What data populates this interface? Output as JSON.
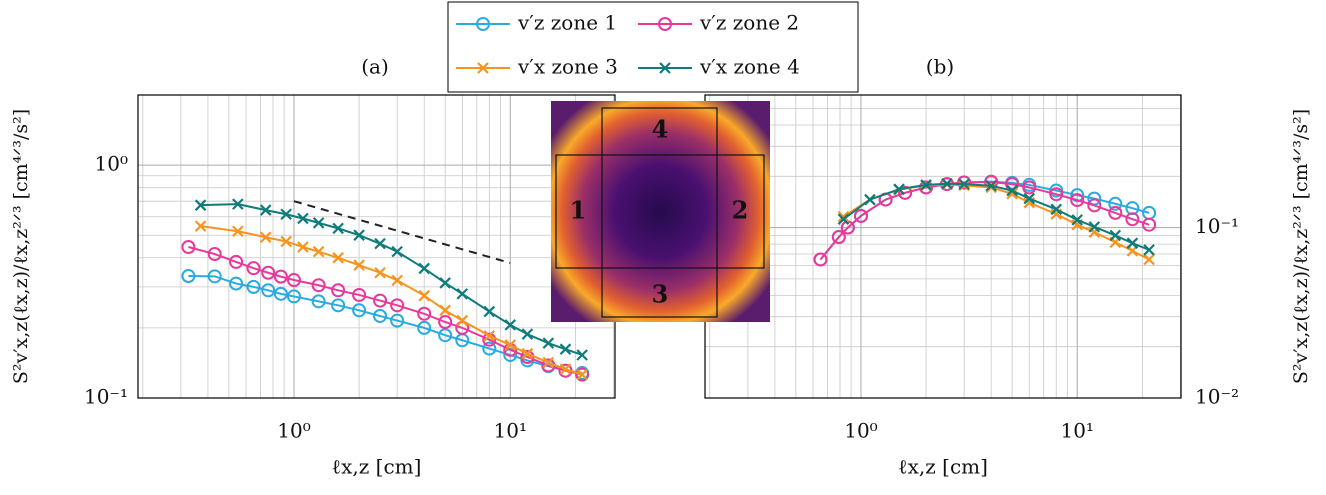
{
  "chart_data": [
    {
      "type": "line",
      "panel_label": "(a)",
      "xlabel": "ℓx,z [cm]",
      "ylabel": "S²v′x,z(ℓx,z)/ℓx,z²ᐟ³ [cm⁴ᐟ³/s²]",
      "log_x": true,
      "log_y": true,
      "grid": true,
      "xlim": [
        0.19,
        30.5
      ],
      "ylim": [
        0.1,
        2.0
      ],
      "xticks": [
        {
          "value": 1,
          "label": "10⁰"
        },
        {
          "value": 10,
          "label": "10¹"
        }
      ],
      "yticks": [
        {
          "value": 0.1,
          "label": "10⁻¹"
        },
        {
          "value": 1,
          "label": "10⁰"
        }
      ],
      "reference_line": {
        "x": [
          1,
          10
        ],
        "values": [
          0.7,
          0.38
        ],
        "color": "#222222"
      },
      "series": [
        {
          "name": "v′z zone 1",
          "color": "#29abe2",
          "marker": "o",
          "x": [
            0.325,
            0.43,
            0.54,
            0.65,
            0.76,
            0.87,
            1.0,
            1.3,
            1.6,
            2,
            2.5,
            3,
            4,
            5,
            6,
            8,
            10,
            12,
            15,
            18,
            21.5
          ],
          "values": [
            0.334,
            0.333,
            0.31,
            0.3,
            0.29,
            0.28,
            0.273,
            0.26,
            0.25,
            0.238,
            0.225,
            0.215,
            0.2,
            0.186,
            0.177,
            0.163,
            0.153,
            0.145,
            0.137,
            0.131,
            0.128
          ]
        },
        {
          "name": "v′z zone 2",
          "color": "#e8399b",
          "marker": "o",
          "x": [
            0.325,
            0.43,
            0.54,
            0.65,
            0.76,
            0.87,
            1.0,
            1.3,
            1.6,
            2,
            2.5,
            3,
            4,
            5,
            6,
            8,
            10,
            12,
            15,
            18,
            21.5
          ],
          "values": [
            0.445,
            0.415,
            0.384,
            0.361,
            0.345,
            0.332,
            0.321,
            0.305,
            0.29,
            0.277,
            0.262,
            0.25,
            0.23,
            0.212,
            0.2,
            0.178,
            0.161,
            0.15,
            0.138,
            0.131,
            0.126
          ]
        },
        {
          "name": "v′x zone 3",
          "color": "#f7941d",
          "marker": "x",
          "x": [
            0.37,
            0.55,
            0.74,
            0.92,
            1.1,
            1.3,
            1.6,
            2,
            2.5,
            3,
            4,
            5,
            6,
            8,
            10,
            12,
            15,
            18,
            21.5
          ],
          "values": [
            0.547,
            0.52,
            0.49,
            0.47,
            0.445,
            0.425,
            0.4,
            0.372,
            0.345,
            0.32,
            0.275,
            0.238,
            0.215,
            0.185,
            0.169,
            0.155,
            0.142,
            0.133,
            0.126
          ]
        },
        {
          "name": "v′x zone 4",
          "color": "#0f7b7b",
          "marker": "x",
          "x": [
            0.37,
            0.55,
            0.74,
            0.92,
            1.1,
            1.3,
            1.6,
            2,
            2.5,
            3,
            4,
            5,
            6,
            8,
            10,
            12,
            15,
            18,
            21.5
          ],
          "values": [
            0.673,
            0.68,
            0.641,
            0.615,
            0.59,
            0.565,
            0.535,
            0.5,
            0.46,
            0.425,
            0.36,
            0.312,
            0.28,
            0.235,
            0.206,
            0.188,
            0.172,
            0.162,
            0.153
          ]
        }
      ]
    },
    {
      "type": "line",
      "panel_label": "(b)",
      "xlabel": "ℓx,z [cm]",
      "ylabel": "S²v′x,z(ℓx,z)/ℓx,z²ᐟ³ [cm⁴ᐟ³/s²]",
      "log_x": true,
      "log_y": true,
      "grid": true,
      "xlim": [
        0.19,
        30.2
      ],
      "ylim": [
        0.01,
        0.6
      ],
      "xticks": [
        {
          "value": 1,
          "label": "10⁰"
        },
        {
          "value": 10,
          "label": "10¹"
        }
      ],
      "yticks": [
        {
          "value": 0.01,
          "label": "10⁻²"
        },
        {
          "value": 0.1,
          "label": "10⁻¹"
        }
      ],
      "series": [
        {
          "color": "#29abe2",
          "marker": "o",
          "x": [
            0.65,
            0.79,
            0.87,
            1.0,
            1.3,
            1.6,
            2,
            2.5,
            3,
            4,
            5,
            6,
            8,
            10,
            12,
            15,
            18,
            21.5
          ],
          "values": [
            0.065,
            0.088,
            0.1,
            0.117,
            0.146,
            0.16,
            0.172,
            0.18,
            0.184,
            0.186,
            0.183,
            0.178,
            0.165,
            0.155,
            0.148,
            0.138,
            0.13,
            0.122
          ]
        },
        {
          "color": "#e8399b",
          "marker": "o",
          "x": [
            0.65,
            0.79,
            0.87,
            1.0,
            1.3,
            1.6,
            2,
            2.5,
            3,
            4,
            5,
            6,
            8,
            10,
            12,
            15,
            18,
            21.5
          ],
          "values": [
            0.065,
            0.088,
            0.1,
            0.117,
            0.146,
            0.16,
            0.172,
            0.18,
            0.184,
            0.185,
            0.18,
            0.172,
            0.157,
            0.145,
            0.135,
            0.122,
            0.112,
            0.104
          ]
        },
        {
          "color": "#f7941d",
          "marker": "x",
          "x": [
            0.83,
            1.1,
            1.5,
            2,
            2.5,
            3,
            4,
            5,
            6,
            8,
            10,
            12,
            15,
            18,
            21.5
          ],
          "values": [
            0.116,
            0.146,
            0.167,
            0.177,
            0.179,
            0.177,
            0.172,
            0.158,
            0.14,
            0.12,
            0.104,
            0.094,
            0.082,
            0.073,
            0.065
          ]
        },
        {
          "color": "#0f7b7b",
          "marker": "x",
          "x": [
            0.83,
            1.1,
            1.5,
            2,
            2.5,
            3,
            4,
            5,
            6,
            8,
            10,
            12,
            15,
            18,
            21.5
          ],
          "values": [
            0.112,
            0.146,
            0.168,
            0.178,
            0.181,
            0.18,
            0.176,
            0.165,
            0.148,
            0.128,
            0.111,
            0.101,
            0.09,
            0.081,
            0.074
          ]
        }
      ]
    }
  ],
  "inset_labels": [
    "1",
    "2",
    "3",
    "4"
  ]
}
